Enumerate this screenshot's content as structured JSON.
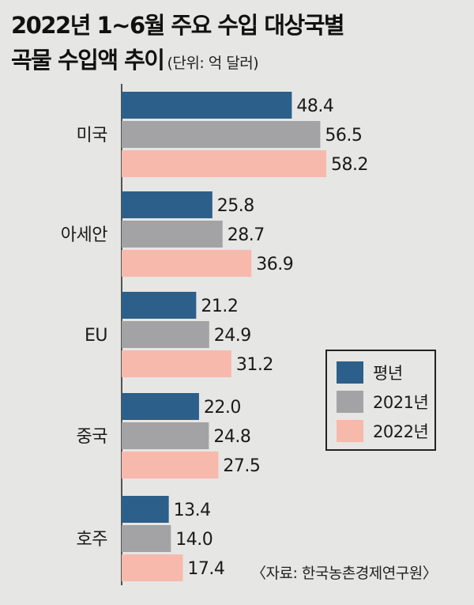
{
  "title_line1": "2022년 1~6월 주요 수입 대상국별",
  "title_line2": "곡물 수입액 추이",
  "unit": "(단위: 억 달러)",
  "source": "〈자료: 한국농촌경제연구원〉",
  "chart_data": {
    "type": "bar",
    "orientation": "horizontal",
    "categories": [
      "미국",
      "아세안",
      "EU",
      "중국",
      "호주"
    ],
    "series": [
      {
        "name": "평년",
        "color": "#2c5f8a",
        "values": [
          48.4,
          25.8,
          21.2,
          22.0,
          13.4
        ]
      },
      {
        "name": "2021년",
        "color": "#a3a3a5",
        "values": [
          56.5,
          28.7,
          24.9,
          24.8,
          14.0
        ]
      },
      {
        "name": "2022년",
        "color": "#f6b9ac",
        "values": [
          58.2,
          36.9,
          31.2,
          27.5,
          17.4
        ]
      }
    ],
    "value_labels": [
      [
        "48.4",
        "25.8",
        "21.2",
        "22.0",
        "13.4"
      ],
      [
        "56.5",
        "28.7",
        "24.9",
        "24.8",
        "14.0"
      ],
      [
        "58.2",
        "36.9",
        "31.2",
        "27.5",
        "17.4"
      ]
    ],
    "xlim": [
      0,
      60
    ],
    "grid": false,
    "legend_position": "right"
  }
}
